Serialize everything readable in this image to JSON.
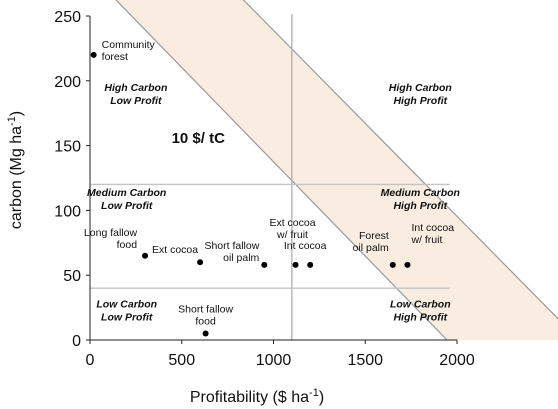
{
  "chart_data": {
    "type": "scatter",
    "xlabel": "Profitability ($ ha",
    "xlabel_unit_sup": "-1",
    "xlabel_close": ")",
    "ylabel": "carbon (Mg ha",
    "ylabel_unit_sup": "-1",
    "ylabel_close": ")",
    "xlim": [
      0,
      2000
    ],
    "ylim": [
      0,
      250
    ],
    "xticks": [
      0,
      500,
      1000,
      1500,
      2000
    ],
    "yticks": [
      0,
      50,
      100,
      150,
      200,
      250
    ],
    "points": [
      {
        "label": [
          "Community",
          "forest"
        ],
        "x": 20,
        "y": 220
      },
      {
        "label": [
          "Long fallow",
          "food"
        ],
        "x": 300,
        "y": 65
      },
      {
        "label": [
          "Ext cocoa"
        ],
        "x": 600,
        "y": 60
      },
      {
        "label": [
          "Short fallow",
          "oil palm"
        ],
        "x": 950,
        "y": 58
      },
      {
        "label": [
          "Ext cocoa",
          "w/ fruit"
        ],
        "x": 1120,
        "y": 58
      },
      {
        "label": [
          "Int cocoa"
        ],
        "x": 1200,
        "y": 58
      },
      {
        "label": [
          "Forest",
          "oil palm"
        ],
        "x": 1650,
        "y": 58
      },
      {
        "label": [
          "Int cocoa",
          "w/ fruit"
        ],
        "x": 1730,
        "y": 58
      },
      {
        "label": [
          "Short fallow",
          "food"
        ],
        "x": 630,
        "y": 5
      }
    ],
    "vertical_divider_x": 1100,
    "horizontal_dividers_y": [
      120,
      40
    ],
    "band": {
      "label": "10 $/ tC",
      "color": "#f9ece0",
      "edge_color": "#9a9a9a",
      "upper_edge": [
        [
          0,
          283
        ],
        [
          1980,
          -5
        ]
      ],
      "lower_edge": [
        [
          700,
          282
        ],
        [
          2700,
          -5
        ]
      ]
    },
    "quadrant_labels": [
      {
        "lines": [
          "High Carbon",
          "Low Profit"
        ],
        "x": 250,
        "y": 192
      },
      {
        "lines": [
          "High Carbon",
          "High Profit"
        ],
        "x": 1800,
        "y": 192
      },
      {
        "lines": [
          "Medium Carbon",
          "Low Profit"
        ],
        "x": 200,
        "y": 111
      },
      {
        "lines": [
          "Medium Carbon",
          "High Profit"
        ],
        "x": 1800,
        "y": 111
      },
      {
        "lines": [
          "Low Carbon",
          "Low Profit"
        ],
        "x": 200,
        "y": 25
      },
      {
        "lines": [
          "Low Carbon",
          "High Profit"
        ],
        "x": 1800,
        "y": 25
      }
    ]
  }
}
